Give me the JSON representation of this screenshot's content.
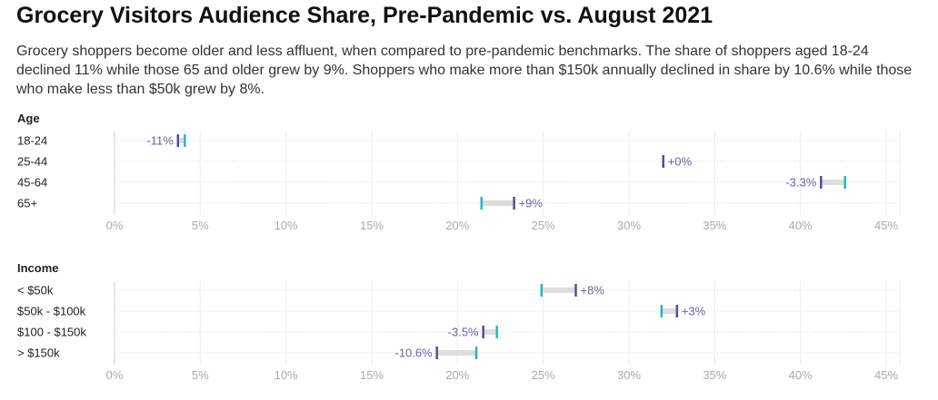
{
  "title": "Grocery Visitors Audience Share, Pre-Pandemic vs. August 2021",
  "subtitle": "Grocery shoppers become older and less affluent, when compared to pre-pandemic benchmarks. The share of shoppers aged 18-24 declined 11% while those 65 and older grew by 9%. Shoppers who make more than $150k annually declined in share by 10.6% while those who make less than $50k grew by 8%.",
  "colors": {
    "pre": "#27b6c6",
    "aug": "#5a4a96",
    "connector": "#dddddd",
    "label": "#6b5fa8"
  },
  "chart_data": [
    {
      "type": "dumbbell",
      "title": "Age",
      "categories": [
        "18-24",
        "25-44",
        "45-64",
        "65+"
      ],
      "series": [
        {
          "values": [
            4.1,
            32.0,
            42.6,
            21.4
          ]
        },
        {
          "values": [
            3.7,
            32.0,
            41.2,
            23.3
          ]
        }
      ],
      "labels": [
        "-11%",
        "+0%",
        "-3.3%",
        "+9%"
      ],
      "xticks": [
        "0%",
        "5%",
        "10%",
        "15%",
        "20%",
        "25%",
        "30%",
        "35%",
        "40%",
        "45%"
      ],
      "xlim": [
        0,
        45
      ]
    },
    {
      "type": "dumbbell",
      "title": "Income",
      "categories": [
        "< $50k",
        "$50k - $100k",
        "$100 - $150k",
        "> $150k"
      ],
      "series": [
        {
          "values": [
            24.9,
            31.9,
            22.3,
            21.1
          ]
        },
        {
          "values": [
            26.9,
            32.8,
            21.5,
            18.8
          ]
        }
      ],
      "labels": [
        "+8%",
        "+3%",
        "-3.5%",
        "-10.6%"
      ],
      "xticks": [
        "0%",
        "5%",
        "10%",
        "15%",
        "20%",
        "25%",
        "30%",
        "35%",
        "40%",
        "45%"
      ],
      "xlim": [
        0,
        45
      ]
    }
  ]
}
